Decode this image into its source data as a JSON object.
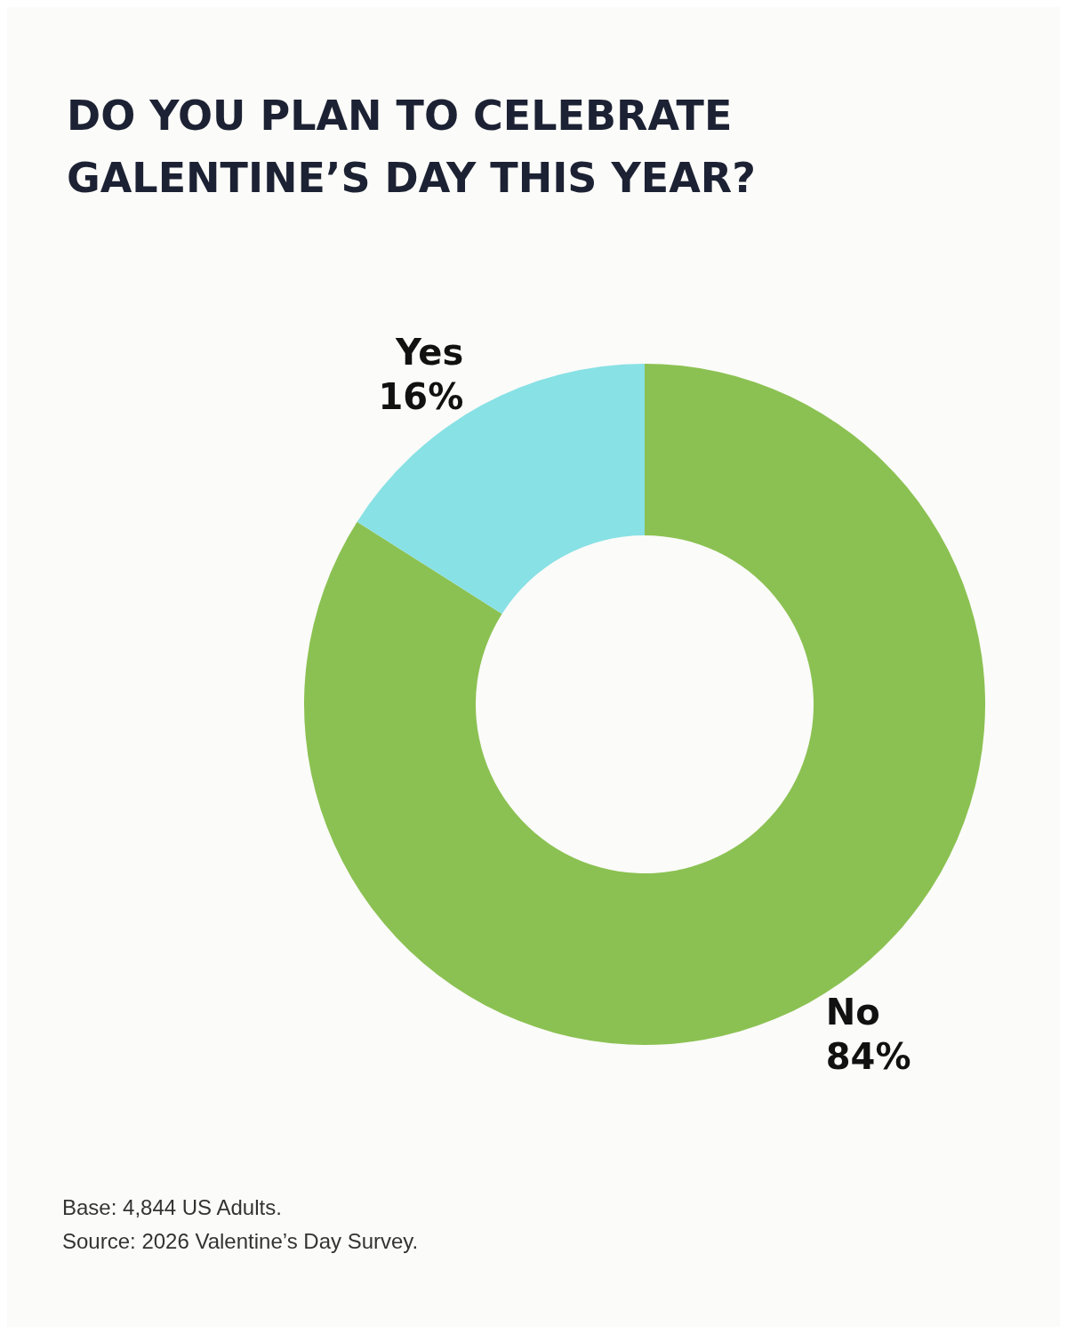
{
  "chart_data": {
    "type": "donut",
    "title": "DO YOU PLAN TO CELEBRATE\nGALENTINE’S DAY THIS YEAR?",
    "categories": [
      "No",
      "Yes"
    ],
    "values": [
      84,
      16
    ],
    "colors": [
      "#8bc152",
      "#88e1e4"
    ],
    "value_labels": [
      "84%",
      "16%"
    ],
    "legend": false,
    "annotations": [
      "Base: 4,844 US Adults.",
      "Source: 2026 Valentine’s Day Survey."
    ]
  }
}
